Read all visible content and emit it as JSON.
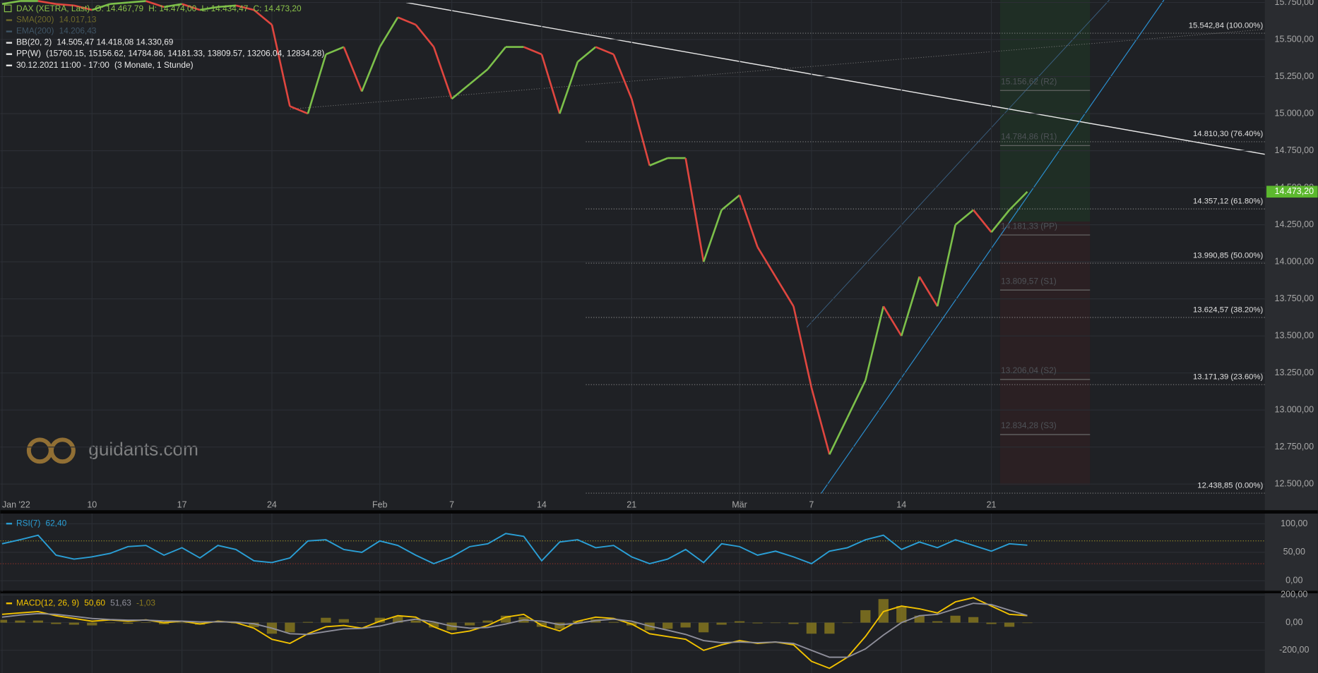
{
  "chart_data": [
    {
      "type": "line",
      "legend": {
        "instrument": "DAX (XETRA, Last)",
        "ohlc": [
          "O: 14.467,79",
          "H: 14.474,00",
          "L: 14.434,47",
          "C: 14.473,20"
        ],
        "indicators": [
          {
            "name": "SMA(200)",
            "value": "14.017,13"
          },
          {
            "name": "EMA(200)",
            "value": "14.206,43"
          },
          {
            "name": "BB(20, 2)",
            "value": "14.505,47  14.418,08  14.330,69"
          },
          {
            "name": "PP(W)",
            "value": "(15760.15, 15156.62, 14784.86, 14181.33, 13809.57, 13206.04, 12834.28)"
          },
          {
            "name": "30.12.2021 11:00 - 17:00",
            "value": "(3 Monate, 1 Stunde)"
          }
        ]
      },
      "watermark": "guidants.com",
      "x": [
        0,
        1,
        2,
        3,
        4,
        5,
        6,
        7,
        8,
        9,
        10,
        11,
        12,
        13,
        14,
        15,
        16,
        17,
        18,
        19,
        20,
        21,
        22,
        23,
        24,
        25,
        26,
        27,
        28,
        29,
        30,
        31,
        32,
        33,
        34,
        35,
        36,
        37,
        38,
        39,
        40,
        41,
        42,
        43,
        44,
        45,
        46,
        47,
        48,
        49,
        50,
        51,
        52,
        53,
        54,
        55,
        56,
        57
      ],
      "series": [
        {
          "name": "DAX (XETRA, Last)",
          "up_color": "#7cc04a",
          "down_color": "#e0463f",
          "values": [
            15740,
            15760,
            15760,
            15740,
            15730,
            15700,
            15740,
            15750,
            15760,
            15720,
            15740,
            15700,
            15720,
            15730,
            15700,
            15600,
            15050,
            15000,
            15400,
            15450,
            15150,
            15450,
            15650,
            15600,
            15450,
            15100,
            15200,
            15300,
            15450,
            15450,
            15400,
            15000,
            15350,
            15450,
            15400,
            15100,
            14650,
            14700,
            14700,
            14000,
            14350,
            14450,
            14100,
            13900,
            13700,
            13150,
            12700,
            12950,
            13200,
            13700,
            13500,
            13900,
            13700,
            14250,
            14350,
            14200,
            14350,
            14473.2
          ]
        }
      ],
      "last_price": {
        "value": 14473.2,
        "label": "14.473,20",
        "color": "#5cb82e"
      },
      "fib_levels": [
        {
          "value": 15542.84,
          "label": "15.542,84 (100.00%)"
        },
        {
          "value": 14810.3,
          "label": "14.810,30 (76.40%)"
        },
        {
          "value": 14357.12,
          "label": "14.357,12 (61.80%)"
        },
        {
          "value": 13990.85,
          "label": "13.990,85 (50.00%)"
        },
        {
          "value": 13624.57,
          "label": "13.624,57 (38.20%)"
        },
        {
          "value": 13171.39,
          "label": "13.171,39 (23.60%)"
        },
        {
          "value": 12438.85,
          "label": "12.438,85 (0.00%)"
        }
      ],
      "pivot_levels": [
        {
          "value": 15156.62,
          "label": "15.156,62 (R2)"
        },
        {
          "value": 14784.86,
          "label": "14.784,86 (R1)"
        },
        {
          "value": 14181.33,
          "label": "14.181,33 (PP)"
        },
        {
          "value": 13809.57,
          "label": "13.809,57 (S1)"
        },
        {
          "value": 13206.04,
          "label": "13.206,04 (S2)"
        },
        {
          "value": 12834.28,
          "label": "12.834,28 (S3)"
        }
      ],
      "xlim": [
        -0.1,
        70.2
      ],
      "xticks": [
        {
          "value": 0,
          "label": "Jan '22"
        },
        {
          "value": 5,
          "label": "10"
        },
        {
          "value": 10,
          "label": "17"
        },
        {
          "value": 15,
          "label": "24"
        },
        {
          "value": 21,
          "label": "Feb"
        },
        {
          "value": 25,
          "label": "7"
        },
        {
          "value": 30,
          "label": "14"
        },
        {
          "value": 35,
          "label": "21"
        },
        {
          "value": 41,
          "label": "Mär"
        },
        {
          "value": 45,
          "label": "7"
        },
        {
          "value": 50,
          "label": "14"
        },
        {
          "value": 55,
          "label": "21"
        }
      ],
      "ylim": [
        12335,
        15767
      ],
      "yticks": [
        {
          "value": 12500,
          "label": "12.500,00"
        },
        {
          "value": 12750,
          "label": "12.750,00"
        },
        {
          "value": 13000,
          "label": "13.000,00"
        },
        {
          "value": 13250,
          "label": "13.250,00"
        },
        {
          "value": 13500,
          "label": "13.500,00"
        },
        {
          "value": 13750,
          "label": "13.750,00"
        },
        {
          "value": 14000,
          "label": "14.000,00"
        },
        {
          "value": 14250,
          "label": "14.250,00"
        },
        {
          "value": 14500,
          "label": "14.500,00"
        },
        {
          "value": 14750,
          "label": "14.750,00"
        },
        {
          "value": 15000,
          "label": "15.000,00"
        },
        {
          "value": 15250,
          "label": "15.250,00"
        },
        {
          "value": 15500,
          "label": "15.500,00"
        },
        {
          "value": 15750,
          "label": "15.750,00"
        }
      ],
      "grid": true
    },
    {
      "type": "line",
      "x": [
        0,
        1,
        2,
        3,
        4,
        5,
        6,
        7,
        8,
        9,
        10,
        11,
        12,
        13,
        14,
        15,
        16,
        17,
        18,
        19,
        20,
        21,
        22,
        23,
        24,
        25,
        26,
        27,
        28,
        29,
        30,
        31,
        32,
        33,
        34,
        35,
        36,
        37,
        38,
        39,
        40,
        41,
        42,
        43,
        44,
        45,
        46,
        47,
        48,
        49,
        50,
        51,
        52,
        53,
        54,
        55,
        56,
        57
      ],
      "series": [
        {
          "name": "RSI(7)",
          "color": "#2a9fd6",
          "last_label": "62,40",
          "values": [
            65,
            72,
            80,
            45,
            38,
            42,
            48,
            60,
            62,
            45,
            58,
            40,
            62,
            55,
            35,
            32,
            40,
            70,
            72,
            55,
            50,
            70,
            62,
            45,
            30,
            42,
            60,
            65,
            83,
            78,
            35,
            68,
            72,
            58,
            62,
            42,
            30,
            38,
            55,
            32,
            65,
            60,
            45,
            52,
            42,
            30,
            52,
            58,
            72,
            80,
            55,
            68,
            58,
            72,
            62,
            52,
            65,
            62.4
          ]
        }
      ],
      "levels": [
        {
          "value": 70,
          "color": "#b5a82a"
        },
        {
          "value": 30,
          "color": "#c0392b"
        }
      ],
      "xlim": [
        -0.1,
        70.2
      ],
      "ylim": [
        -19,
        118
      ],
      "yticks": [
        {
          "value": 100,
          "label": "100,00"
        },
        {
          "value": 50,
          "label": "50,00"
        },
        {
          "value": 0,
          "label": "0,00"
        }
      ],
      "grid": true
    },
    {
      "type": "line",
      "x": [
        0,
        1,
        2,
        3,
        4,
        5,
        6,
        7,
        8,
        9,
        10,
        11,
        12,
        13,
        14,
        15,
        16,
        17,
        18,
        19,
        20,
        21,
        22,
        23,
        24,
        25,
        26,
        27,
        28,
        29,
        30,
        31,
        32,
        33,
        34,
        35,
        36,
        37,
        38,
        39,
        40,
        41,
        42,
        43,
        44,
        45,
        46,
        47,
        48,
        49,
        50,
        51,
        52,
        53,
        54,
        55,
        56,
        57
      ],
      "series": [
        {
          "name": "MACD(12, 26, 9)",
          "color": "#f2c200",
          "last_label": "50,60",
          "values": [
            60,
            70,
            80,
            50,
            30,
            10,
            20,
            10,
            20,
            0,
            10,
            -10,
            10,
            0,
            -40,
            -120,
            -150,
            -80,
            -30,
            -20,
            -40,
            10,
            50,
            40,
            -30,
            -80,
            -60,
            -20,
            40,
            60,
            -20,
            -60,
            10,
            40,
            30,
            -10,
            -80,
            -100,
            -120,
            -200,
            -160,
            -130,
            -150,
            -140,
            -160,
            -280,
            -330,
            -250,
            -100,
            80,
            120,
            100,
            70,
            150,
            180,
            120,
            60,
            50.6
          ]
        },
        {
          "color": "#8e8e9a",
          "last_label": "51,63",
          "values": [
            40,
            55,
            65,
            60,
            45,
            30,
            22,
            18,
            18,
            12,
            11,
            5,
            6,
            4,
            -8,
            -40,
            -80,
            -85,
            -65,
            -45,
            -42,
            -25,
            5,
            25,
            5,
            -25,
            -40,
            -35,
            -10,
            20,
            10,
            -15,
            -5,
            15,
            25,
            10,
            -25,
            -55,
            -85,
            -130,
            -145,
            -140,
            -145,
            -140,
            -150,
            -200,
            -250,
            -250,
            -190,
            -90,
            0,
            50,
            60,
            100,
            140,
            130,
            90,
            51.63
          ]
        }
      ],
      "histogram": {
        "color": "#8a7a1e",
        "last_label": "-1,03",
        "values": [
          20,
          15,
          15,
          -10,
          -15,
          -20,
          -2,
          -8,
          2,
          -12,
          -1,
          -15,
          4,
          -4,
          -32,
          -80,
          -70,
          5,
          35,
          25,
          2,
          35,
          45,
          15,
          -35,
          -55,
          -20,
          15,
          50,
          40,
          -30,
          -45,
          15,
          25,
          5,
          -20,
          -55,
          -45,
          -35,
          -70,
          -15,
          10,
          -5,
          0,
          -10,
          -80,
          -80,
          0,
          90,
          170,
          120,
          50,
          10,
          50,
          40,
          -10,
          -30,
          -1.03
        ]
      },
      "xlim": [
        -0.1,
        70.2
      ],
      "ylim": [
        -364,
        212
      ],
      "yticks": [
        {
          "value": 200,
          "label": "200,00"
        },
        {
          "value": 0,
          "label": "0,00"
        },
        {
          "value": -200,
          "label": "-200,00"
        }
      ],
      "grid": true
    }
  ]
}
